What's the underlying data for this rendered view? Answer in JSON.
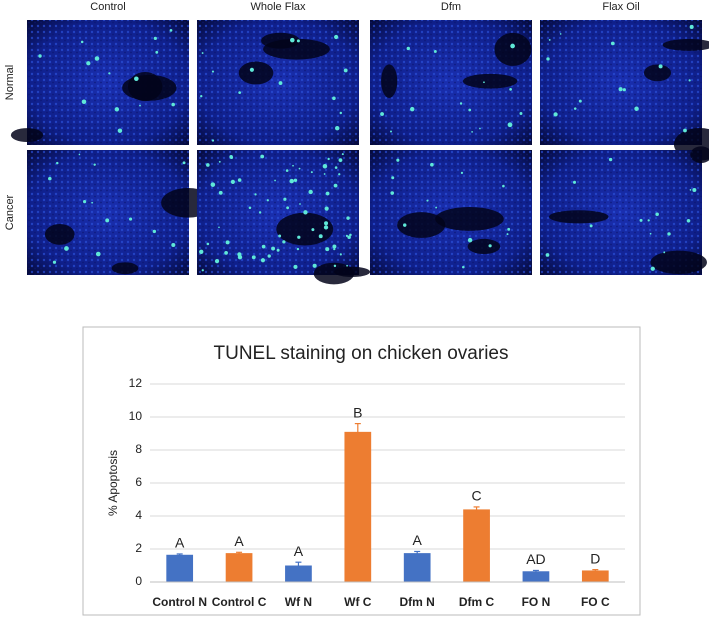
{
  "panel": {
    "columns": [
      "Control",
      "Whole Flax",
      "Dfm",
      "Flax Oil"
    ],
    "rows": [
      "Normal",
      "Cancer"
    ]
  },
  "chart_data": {
    "type": "bar",
    "title": "TUNEL staining on chicken ovaries",
    "y_label": "% Apoptosis",
    "categories": [
      "Control N",
      "Control C",
      "Wf N",
      "Wf C",
      "Dfm N",
      "Dfm C",
      "FO N",
      "FO C"
    ],
    "values": [
      1.65,
      1.75,
      1.0,
      9.1,
      1.75,
      4.4,
      0.65,
      0.7
    ],
    "errors": [
      0.05,
      0.05,
      0.2,
      0.5,
      0.1,
      0.15,
      0.05,
      0.05
    ],
    "letters": [
      "A",
      "A",
      "A",
      "B",
      "A",
      "C",
      "AD",
      "D"
    ],
    "colors": [
      "#4472c4",
      "#ed7d31",
      "#4472c4",
      "#ed7d31",
      "#4472c4",
      "#ed7d31",
      "#4472c4",
      "#ed7d31"
    ],
    "ylim": [
      0,
      12
    ],
    "yticks": [
      0,
      2,
      4,
      6,
      8,
      10,
      12
    ],
    "grid": true
  }
}
